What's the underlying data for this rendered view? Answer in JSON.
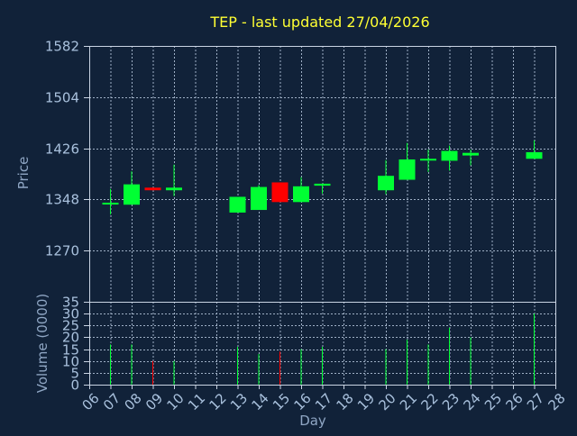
{
  "title": "TEP - last updated 27/04/2026",
  "colors": {
    "background": "#112239",
    "frame": "#c9d4e3",
    "grid": "#9fb0c6",
    "up": "#00ff33",
    "down": "#ff0000",
    "title": "#ffff33",
    "tick_text": "#a9c1dd"
  },
  "chart_data": [
    {
      "type": "candlestick",
      "ylabel": "Price",
      "ylim": [
        1192,
        1582
      ],
      "y_ticks": [
        "1582",
        "1504",
        "1426",
        "1348",
        "1270"
      ],
      "grid": true,
      "candles": [
        {
          "day": 7,
          "open": 1341,
          "close": 1343,
          "high": 1364,
          "low": 1325
        },
        {
          "day": 8,
          "open": 1340,
          "close": 1371,
          "high": 1391,
          "low": 1340
        },
        {
          "day": 9,
          "open": 1366,
          "close": 1362,
          "high": 1366,
          "low": 1362
        },
        {
          "day": 10,
          "open": 1362,
          "close": 1366,
          "high": 1401,
          "low": 1353
        },
        {
          "day": 13,
          "open": 1328,
          "close": 1352,
          "high": 1352,
          "low": 1328
        },
        {
          "day": 14,
          "open": 1332,
          "close": 1367,
          "high": 1370,
          "low": 1332
        },
        {
          "day": 15,
          "open": 1374,
          "close": 1344,
          "high": 1374,
          "low": 1344
        },
        {
          "day": 16,
          "open": 1344,
          "close": 1368,
          "high": 1382,
          "low": 1344
        },
        {
          "day": 17,
          "open": 1369,
          "close": 1372,
          "high": 1372,
          "low": 1357
        },
        {
          "day": 20,
          "open": 1362,
          "close": 1384,
          "high": 1408,
          "low": 1356
        },
        {
          "day": 21,
          "open": 1378,
          "close": 1409,
          "high": 1434,
          "low": 1378
        },
        {
          "day": 22,
          "open": 1409,
          "close": 1410,
          "high": 1424,
          "low": 1390
        },
        {
          "day": 23,
          "open": 1407,
          "close": 1422,
          "high": 1430,
          "low": 1392
        },
        {
          "day": 24,
          "open": 1415,
          "close": 1419,
          "high": 1424,
          "low": 1400
        },
        {
          "day": 27,
          "open": 1410,
          "close": 1420,
          "high": 1438,
          "low": 1410
        }
      ]
    },
    {
      "type": "bar",
      "ylabel": "Volume (0000)",
      "ylim": [
        0,
        35
      ],
      "y_ticks": [
        "35",
        "30",
        "25",
        "20",
        "15",
        "10",
        "5",
        "0"
      ],
      "xlabel": "Day",
      "x_ticks": [
        "06",
        "07",
        "08",
        "09",
        "10",
        "11",
        "12",
        "13",
        "14",
        "15",
        "16",
        "17",
        "18",
        "19",
        "20",
        "21",
        "22",
        "23",
        "24",
        "25",
        "26",
        "27",
        "28"
      ],
      "grid": true,
      "bars": [
        {
          "day": 7,
          "value": 17,
          "dir": "up"
        },
        {
          "day": 8,
          "value": 17,
          "dir": "up"
        },
        {
          "day": 9,
          "value": 10,
          "dir": "down"
        },
        {
          "day": 10,
          "value": 10,
          "dir": "up"
        },
        {
          "day": 13,
          "value": 16,
          "dir": "up"
        },
        {
          "day": 14,
          "value": 13,
          "dir": "up"
        },
        {
          "day": 15,
          "value": 14,
          "dir": "down"
        },
        {
          "day": 16,
          "value": 15,
          "dir": "up"
        },
        {
          "day": 17,
          "value": 16,
          "dir": "up"
        },
        {
          "day": 20,
          "value": 15,
          "dir": "up"
        },
        {
          "day": 21,
          "value": 19,
          "dir": "up"
        },
        {
          "day": 22,
          "value": 17,
          "dir": "up"
        },
        {
          "day": 23,
          "value": 24,
          "dir": "up"
        },
        {
          "day": 24,
          "value": 20,
          "dir": "up"
        },
        {
          "day": 27,
          "value": 30,
          "dir": "up"
        }
      ]
    }
  ]
}
